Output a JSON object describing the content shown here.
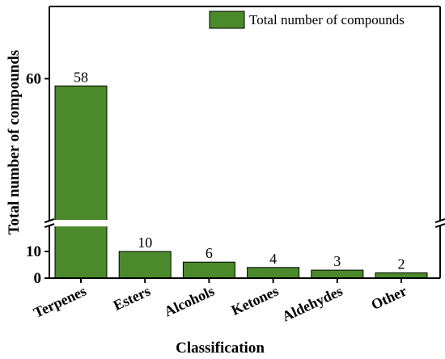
{
  "chart_data": {
    "type": "bar",
    "xlabel": "Classification",
    "ylabel": "Total number of compounds",
    "categories": [
      "Terpenes",
      "Esters",
      "Alcohols",
      "Ketones",
      "Aldehydes",
      "Other"
    ],
    "series": [
      {
        "name": "Total number of compounds",
        "values": [
          58,
          10,
          6,
          4,
          3,
          2
        ]
      }
    ],
    "data_labels": [
      "58",
      "10",
      "6",
      "4",
      "3",
      "2"
    ],
    "y_axis_break": {
      "lower_range": [
        0,
        20
      ],
      "upper_range": [
        20,
        80
      ]
    },
    "y_ticks": [
      0,
      10,
      60
    ],
    "y_tick_labels": [
      "0",
      "10",
      "60"
    ],
    "bar_color": "#4a8a2a",
    "legend_position": "top-right",
    "grid": false
  }
}
